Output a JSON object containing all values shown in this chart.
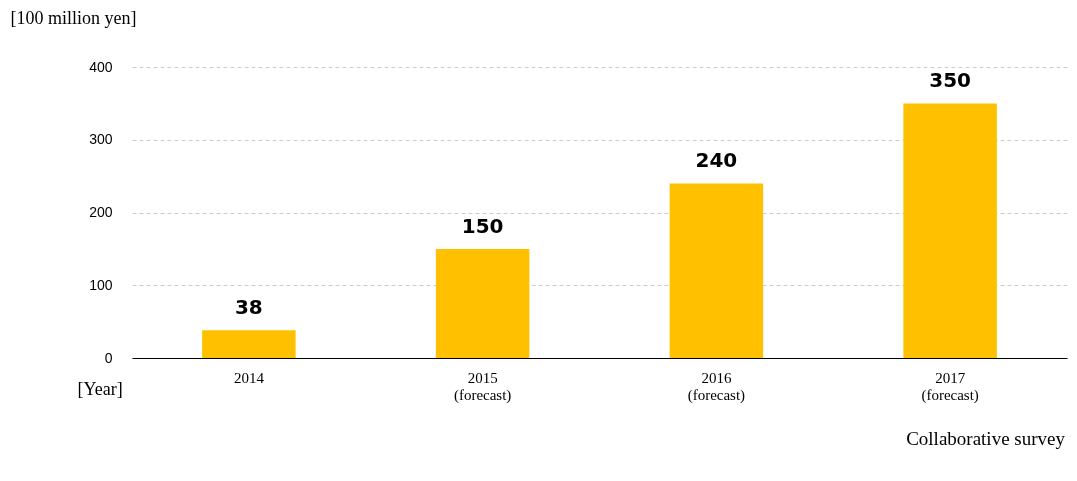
{
  "chart_data": {
    "type": "bar",
    "categories": [
      "2014",
      "2015\n(forecast)",
      "2016\n(forecast)",
      "2017\n(forecast)"
    ],
    "values": [
      38,
      150,
      240,
      350
    ],
    "color": "#ffc000",
    "ylabel": "[100 million yen]",
    "xlabel": "[Year]",
    "ylim": [
      0,
      400
    ],
    "yticks": [
      0,
      100,
      200,
      300,
      400
    ],
    "grid": "y",
    "data_labels": true,
    "annotations": [
      "Collaborative survey"
    ]
  }
}
